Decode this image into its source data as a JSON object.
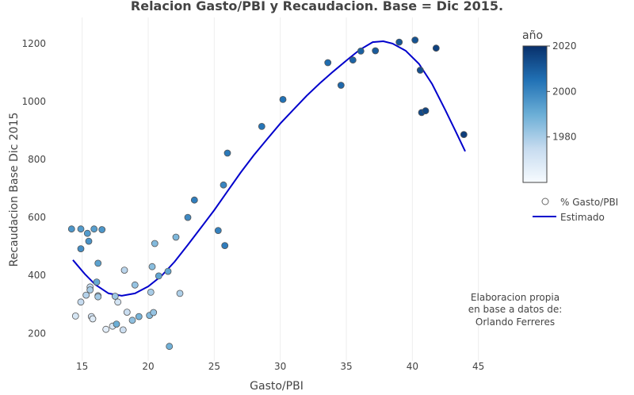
{
  "chart_data": {
    "type": "scatter",
    "title": "Relacion Gasto/PBI y Recaudacion. Base = Dic 2015.",
    "xlabel": "Gasto/PBI",
    "ylabel": "Recaudacion Base Dic 2015",
    "xlim": [
      12.5,
      47
    ],
    "ylim": [
      105,
      1290
    ],
    "xticks": [
      "15",
      "20",
      "25",
      "30",
      "35",
      "40",
      "45"
    ],
    "yticks": [
      "200",
      "400",
      "600",
      "800",
      "1000",
      "1200"
    ],
    "grid": "vertical",
    "legend_placement": "right",
    "colorbar": {
      "title": "año",
      "range": [
        1960,
        2020
      ],
      "ticks": [
        "1980",
        "2000",
        "2020"
      ],
      "colors": [
        "#f7fbff",
        "#c6dbef",
        "#6baed6",
        "#2171b5",
        "#08306b"
      ]
    },
    "series": [
      {
        "name": "% Gasto/PBI",
        "marker": "circle",
        "points": [
          {
            "x": 14.2,
            "y": 560,
            "year": 1996
          },
          {
            "x": 14.9,
            "y": 560,
            "year": 1995
          },
          {
            "x": 15.4,
            "y": 545,
            "year": 1995
          },
          {
            "x": 15.5,
            "y": 518,
            "year": 1997
          },
          {
            "x": 15.9,
            "y": 560,
            "year": 1994
          },
          {
            "x": 16.5,
            "y": 558,
            "year": 1996
          },
          {
            "x": 14.9,
            "y": 492,
            "year": 1998
          },
          {
            "x": 16.2,
            "y": 442,
            "year": 1993
          },
          {
            "x": 16.1,
            "y": 377,
            "year": 1991
          },
          {
            "x": 15.6,
            "y": 360,
            "year": 1976
          },
          {
            "x": 15.6,
            "y": 350,
            "year": 1980
          },
          {
            "x": 15.3,
            "y": 332,
            "year": 1978
          },
          {
            "x": 14.9,
            "y": 308,
            "year": 1975
          },
          {
            "x": 14.5,
            "y": 260,
            "year": 1970
          },
          {
            "x": 15.7,
            "y": 258,
            "year": 1972
          },
          {
            "x": 15.8,
            "y": 250,
            "year": 1968
          },
          {
            "x": 16.2,
            "y": 330,
            "year": 1979
          },
          {
            "x": 16.2,
            "y": 326,
            "year": 1981
          },
          {
            "x": 16.8,
            "y": 214,
            "year": 1966
          },
          {
            "x": 17.3,
            "y": 225,
            "year": 1969
          },
          {
            "x": 17.5,
            "y": 328,
            "year": 1982
          },
          {
            "x": 17.7,
            "y": 308,
            "year": 1971
          },
          {
            "x": 17.6,
            "y": 232,
            "year": 1990
          },
          {
            "x": 18.1,
            "y": 212,
            "year": 1973
          },
          {
            "x": 18.2,
            "y": 418,
            "year": 1977
          },
          {
            "x": 18.4,
            "y": 273,
            "year": 1974
          },
          {
            "x": 18.8,
            "y": 245,
            "year": 1984
          },
          {
            "x": 19.0,
            "y": 367,
            "year": 1983
          },
          {
            "x": 19.3,
            "y": 258,
            "year": 1988
          },
          {
            "x": 20.1,
            "y": 262,
            "year": 1986
          },
          {
            "x": 20.2,
            "y": 342,
            "year": 1980
          },
          {
            "x": 20.3,
            "y": 430,
            "year": 1985
          },
          {
            "x": 20.4,
            "y": 272,
            "year": 1983
          },
          {
            "x": 20.5,
            "y": 510,
            "year": 1986
          },
          {
            "x": 20.8,
            "y": 398,
            "year": 1992
          },
          {
            "x": 21.5,
            "y": 414,
            "year": 1992
          },
          {
            "x": 21.6,
            "y": 155,
            "year": 1989
          },
          {
            "x": 22.1,
            "y": 532,
            "year": 1987
          },
          {
            "x": 22.4,
            "y": 338,
            "year": 1979
          },
          {
            "x": 23.0,
            "y": 600,
            "year": 1999
          },
          {
            "x": 23.5,
            "y": 660,
            "year": 2002
          },
          {
            "x": 25.3,
            "y": 555,
            "year": 2001
          },
          {
            "x": 25.7,
            "y": 712,
            "year": 2000
          },
          {
            "x": 25.8,
            "y": 503,
            "year": 2002
          },
          {
            "x": 26.0,
            "y": 822,
            "year": 2003
          },
          {
            "x": 28.6,
            "y": 914,
            "year": 2004
          },
          {
            "x": 30.2,
            "y": 1007,
            "year": 2005
          },
          {
            "x": 33.6,
            "y": 1134,
            "year": 2006
          },
          {
            "x": 34.6,
            "y": 1056,
            "year": 2007
          },
          {
            "x": 35.5,
            "y": 1143,
            "year": 2008
          },
          {
            "x": 36.1,
            "y": 1174,
            "year": 2009
          },
          {
            "x": 37.2,
            "y": 1175,
            "year": 2010
          },
          {
            "x": 39.0,
            "y": 1205,
            "year": 2011
          },
          {
            "x": 40.2,
            "y": 1212,
            "year": 2012
          },
          {
            "x": 40.6,
            "y": 1108,
            "year": 2013
          },
          {
            "x": 40.7,
            "y": 962,
            "year": 2014
          },
          {
            "x": 41.0,
            "y": 968,
            "year": 2015
          },
          {
            "x": 41.8,
            "y": 1184,
            "year": 2016
          },
          {
            "x": 43.9,
            "y": 886,
            "year": 2017
          }
        ]
      },
      {
        "name": "Estimado",
        "marker": "line",
        "color": "#0000cc",
        "points": [
          {
            "x": 14.3,
            "y": 453
          },
          {
            "x": 15.2,
            "y": 405
          },
          {
            "x": 16.0,
            "y": 368
          },
          {
            "x": 17.0,
            "y": 338
          },
          {
            "x": 18.0,
            "y": 330
          },
          {
            "x": 19.0,
            "y": 338
          },
          {
            "x": 20.0,
            "y": 362
          },
          {
            "x": 21.0,
            "y": 398
          },
          {
            "x": 22.0,
            "y": 447
          },
          {
            "x": 23.0,
            "y": 505
          },
          {
            "x": 24.0,
            "y": 565
          },
          {
            "x": 25.0,
            "y": 625
          },
          {
            "x": 26.0,
            "y": 690
          },
          {
            "x": 27.0,
            "y": 755
          },
          {
            "x": 28.0,
            "y": 815
          },
          {
            "x": 29.0,
            "y": 870
          },
          {
            "x": 30.0,
            "y": 924
          },
          {
            "x": 31.0,
            "y": 972
          },
          {
            "x": 32.0,
            "y": 1020
          },
          {
            "x": 33.0,
            "y": 1063
          },
          {
            "x": 34.0,
            "y": 1103
          },
          {
            "x": 35.0,
            "y": 1141
          },
          {
            "x": 36.0,
            "y": 1178
          },
          {
            "x": 37.0,
            "y": 1205
          },
          {
            "x": 37.8,
            "y": 1208
          },
          {
            "x": 38.5,
            "y": 1200
          },
          {
            "x": 39.5,
            "y": 1175
          },
          {
            "x": 40.5,
            "y": 1130
          },
          {
            "x": 41.5,
            "y": 1060
          },
          {
            "x": 42.5,
            "y": 970
          },
          {
            "x": 43.3,
            "y": 895
          },
          {
            "x": 44.0,
            "y": 828
          }
        ]
      }
    ],
    "annotation": [
      "Elaboracion propia",
      "en base a datos de:",
      "Orlando Ferreres"
    ]
  }
}
